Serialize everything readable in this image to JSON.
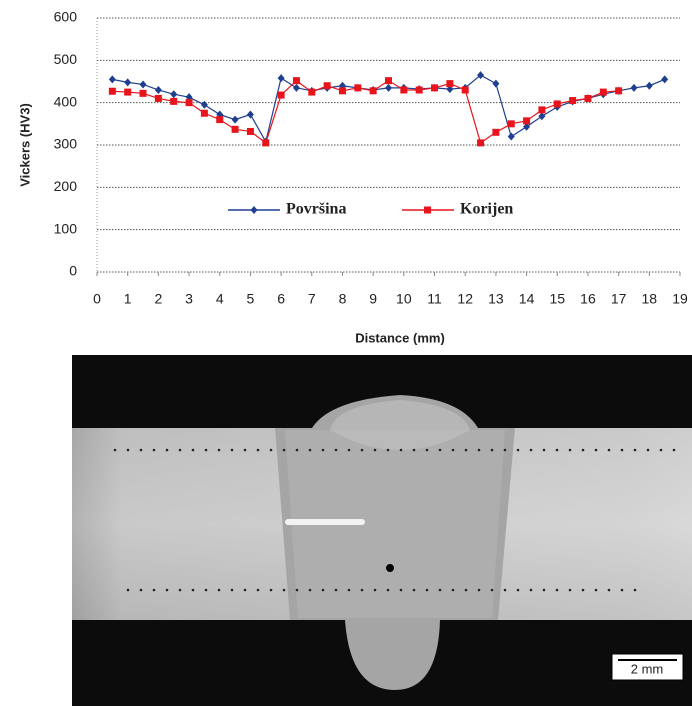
{
  "chart_data": {
    "type": "line",
    "x_label": "Distance (mm)",
    "y_label": "Vickers (HV3)",
    "x": [
      0.5,
      1,
      1.5,
      2,
      2.5,
      3,
      3.5,
      4,
      4.5,
      5,
      5.5,
      6,
      6.5,
      7,
      7.5,
      8,
      8.5,
      9,
      9.5,
      10,
      10.5,
      11,
      11.5,
      12,
      12.5,
      13,
      13.5,
      14,
      14.5,
      15,
      15.5,
      16,
      16.5,
      17,
      17.5,
      18,
      18.5
    ],
    "series": [
      {
        "name": "Površina",
        "color": "#1f3f8f",
        "marker": "diamond",
        "values": [
          455,
          448,
          443,
          430,
          420,
          413,
          395,
          372,
          360,
          372,
          308,
          458,
          435,
          428,
          435,
          440,
          435,
          430,
          435,
          435,
          432,
          435,
          432,
          435,
          465,
          445,
          320,
          343,
          368,
          390,
          403,
          410,
          420,
          428,
          435,
          440,
          455
        ]
      },
      {
        "name": "Korijen",
        "color": "#e8141c",
        "marker": "square",
        "values": [
          427,
          425,
          422,
          410,
          403,
          400,
          375,
          360,
          337,
          332,
          305,
          418,
          452,
          425,
          440,
          428,
          435,
          428,
          452,
          430,
          430,
          435,
          445,
          430,
          305,
          330,
          350,
          357,
          383,
          397,
          405,
          410,
          425,
          428,
          null,
          null,
          null
        ]
      }
    ],
    "xlim": [
      0,
      19
    ],
    "xticks": [
      0,
      1,
      2,
      3,
      4,
      5,
      6,
      7,
      8,
      9,
      10,
      11,
      12,
      13,
      14,
      15,
      16,
      17,
      18,
      19
    ],
    "ylim": [
      0,
      600
    ],
    "yticks": [
      0,
      100,
      200,
      300,
      400,
      500,
      600
    ],
    "grid": true,
    "legend": "center"
  },
  "image": {
    "scale_bar": "2 mm"
  }
}
